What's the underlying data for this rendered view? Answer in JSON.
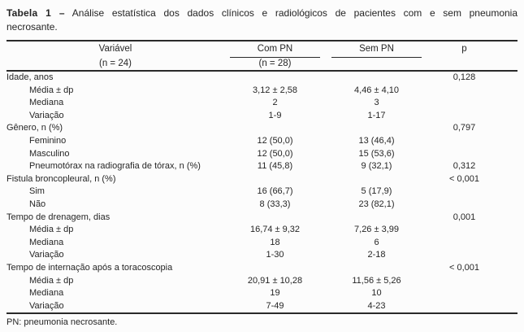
{
  "caption": {
    "bold_label": "Tabela 1 –",
    "line1": "Análise estatística dos dados clínicos e radiológicos de pacientes com e sem pneumonia",
    "line2": "necrosante."
  },
  "header": {
    "variable": "Variável",
    "group1_title": "Com PN",
    "group1_n": "(n = 24)",
    "group2_title": "Sem PN",
    "group2_n": "(n = 28)",
    "p": "p"
  },
  "rows": [
    {
      "label": "Idade, anos",
      "indent": false,
      "com": "",
      "sem": "",
      "p": "0,128"
    },
    {
      "label": "Média ± dp",
      "indent": true,
      "com": "3,12 ± 2,58",
      "sem": "4,46 ± 4,10",
      "p": ""
    },
    {
      "label": "Mediana",
      "indent": true,
      "com": "2",
      "sem": "3",
      "p": ""
    },
    {
      "label": "Variação",
      "indent": true,
      "com": "1-9",
      "sem": "1-17",
      "p": ""
    },
    {
      "label": "Gênero, n (%)",
      "indent": false,
      "com": "",
      "sem": "",
      "p": "0,797"
    },
    {
      "label": "Feminino",
      "indent": true,
      "com": "12 (50,0)",
      "sem": "13 (46,4)",
      "p": ""
    },
    {
      "label": "Masculino",
      "indent": true,
      "com": "12 (50,0)",
      "sem": "15 (53,6)",
      "p": ""
    },
    {
      "label": "Pneumotórax na radiografia de tórax, n (%)",
      "indent": true,
      "com": "11 (45,8)",
      "sem": "9 (32,1)",
      "p": "0,312"
    },
    {
      "label": "Fistula broncopleural, n (%)",
      "indent": false,
      "com": "",
      "sem": "",
      "p": "< 0,001"
    },
    {
      "label": "Sim",
      "indent": true,
      "com": "16 (66,7)",
      "sem": "5 (17,9)",
      "p": ""
    },
    {
      "label": "Não",
      "indent": true,
      "com": "8 (33,3)",
      "sem": "23 (82,1)",
      "p": ""
    },
    {
      "label": "Tempo de drenagem, dias",
      "indent": false,
      "com": "",
      "sem": "",
      "p": "0,001"
    },
    {
      "label": "Média ± dp",
      "indent": true,
      "com": "16,74 ± 9,32",
      "sem": "7,26 ± 3,99",
      "p": ""
    },
    {
      "label": "Mediana",
      "indent": true,
      "com": "18",
      "sem": "6",
      "p": ""
    },
    {
      "label": "Variação",
      "indent": true,
      "com": "1-30",
      "sem": "2-18",
      "p": ""
    },
    {
      "label": "Tempo de internação após a toracoscopia",
      "indent": false,
      "com": "",
      "sem": "",
      "p": "< 0,001"
    },
    {
      "label": "Média ± dp",
      "indent": true,
      "com": "20,91 ± 10,28",
      "sem": "11,56 ± 5,26",
      "p": ""
    },
    {
      "label": "Mediana",
      "indent": true,
      "com": "19",
      "sem": "10",
      "p": ""
    },
    {
      "label": "Variação",
      "indent": true,
      "com": "7-49",
      "sem": "4-23",
      "p": ""
    }
  ],
  "footnote": "PN: pneumonia necrosante.",
  "colors": {
    "text": "#262626",
    "rule": "#2a2a2a",
    "background": "#fcfcfc"
  }
}
